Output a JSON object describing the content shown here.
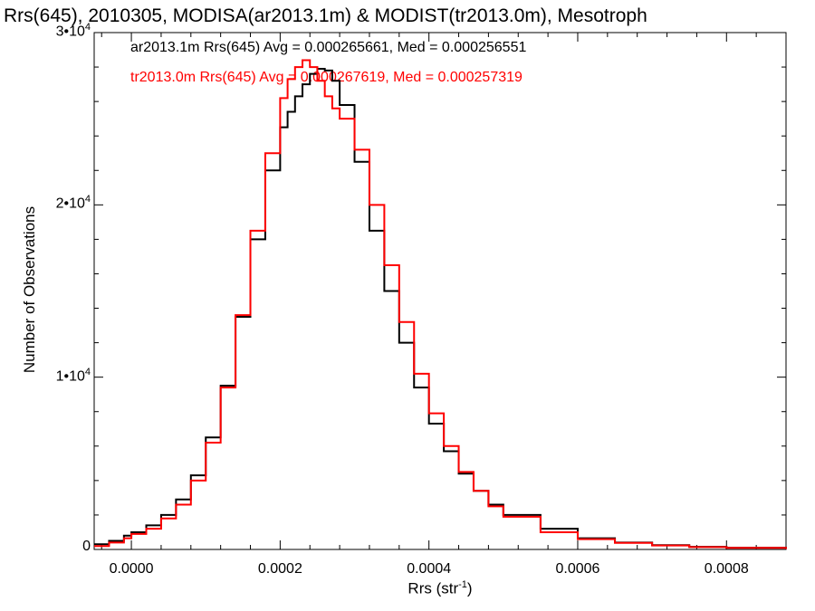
{
  "chart_data": {
    "type": "line",
    "title": "Rrs(645), 2010305, MODISA(ar2013.1m) & MODIST(tr2013.0m), Mesotroph",
    "xlabel_base": "Rrs (str",
    "xlabel_exp": "-1",
    "xlabel_close": ")",
    "ylabel": "Number of Observations",
    "xlim": [
      -5e-05,
      0.00088
    ],
    "ylim": [
      0,
      30000
    ],
    "xticks": [
      {
        "value": 0.0,
        "label": "0.0000"
      },
      {
        "value": 0.0002,
        "label": "0.0002"
      },
      {
        "value": 0.0004,
        "label": "0.0004"
      },
      {
        "value": 0.0006,
        "label": "0.0006"
      },
      {
        "value": 0.0008,
        "label": "0.0008"
      }
    ],
    "yticks": [
      {
        "value": 0,
        "label": "0",
        "exp": ""
      },
      {
        "value": 10000,
        "label": "1•10",
        "exp": "4"
      },
      {
        "value": 20000,
        "label": "2•10",
        "exp": "4"
      },
      {
        "value": 30000,
        "label": "3•10",
        "exp": "4"
      }
    ],
    "series": [
      {
        "name": "ar2013.1m Rrs(645)",
        "legend": "ar2013.1m Rrs(645) Avg = 0.000265661, Med = 0.000256551",
        "color": "#000000",
        "x": [
          -5e-05,
          -3e-05,
          -1e-05,
          0.0,
          2e-05,
          4e-05,
          6e-05,
          8e-05,
          0.0001,
          0.00012,
          0.00014,
          0.00016,
          0.00018,
          0.0002,
          0.00021,
          0.00022,
          0.00023,
          0.00024,
          0.00025,
          0.00026,
          0.00027,
          0.00028,
          0.0003,
          0.00032,
          0.00034,
          0.00036,
          0.00038,
          0.0004,
          0.00042,
          0.00044,
          0.00046,
          0.00048,
          0.0005,
          0.00055,
          0.0006,
          0.00065,
          0.0007,
          0.00075,
          0.0008,
          0.00088
        ],
        "y": [
          300,
          500,
          800,
          1000,
          1400,
          2000,
          2900,
          4300,
          6500,
          9500,
          13500,
          18000,
          22000,
          24500,
          25400,
          26300,
          27000,
          27600,
          27900,
          27800,
          27200,
          25800,
          22500,
          18500,
          15000,
          12000,
          9400,
          7300,
          5700,
          4400,
          3400,
          2600,
          2000,
          1200,
          650,
          400,
          250,
          150,
          100,
          30
        ]
      },
      {
        "name": "tr2013.0m Rrs(645)",
        "legend": "tr2013.0m Rrs(645) Avg = 0.000267619, Med = 0.000257319",
        "color": "#ff0000",
        "x": [
          -5e-05,
          -3e-05,
          -1e-05,
          0.0,
          2e-05,
          4e-05,
          6e-05,
          8e-05,
          0.0001,
          0.00012,
          0.00014,
          0.00016,
          0.00018,
          0.0002,
          0.00021,
          0.00022,
          0.00023,
          0.00024,
          0.00025,
          0.00026,
          0.00027,
          0.00028,
          0.0003,
          0.00032,
          0.00034,
          0.00036,
          0.00038,
          0.0004,
          0.00042,
          0.00044,
          0.00046,
          0.00048,
          0.0005,
          0.00055,
          0.0006,
          0.00065,
          0.0007,
          0.00075,
          0.0008,
          0.00088
        ],
        "y": [
          200,
          400,
          650,
          900,
          1200,
          1800,
          2600,
          4000,
          6200,
          9400,
          13600,
          18500,
          23000,
          26200,
          27300,
          28000,
          28400,
          28000,
          27200,
          26300,
          25600,
          25000,
          23200,
          20000,
          16500,
          13200,
          10200,
          7900,
          6000,
          4500,
          3400,
          2500,
          1900,
          1000,
          600,
          380,
          230,
          140,
          90,
          25
        ]
      }
    ]
  }
}
